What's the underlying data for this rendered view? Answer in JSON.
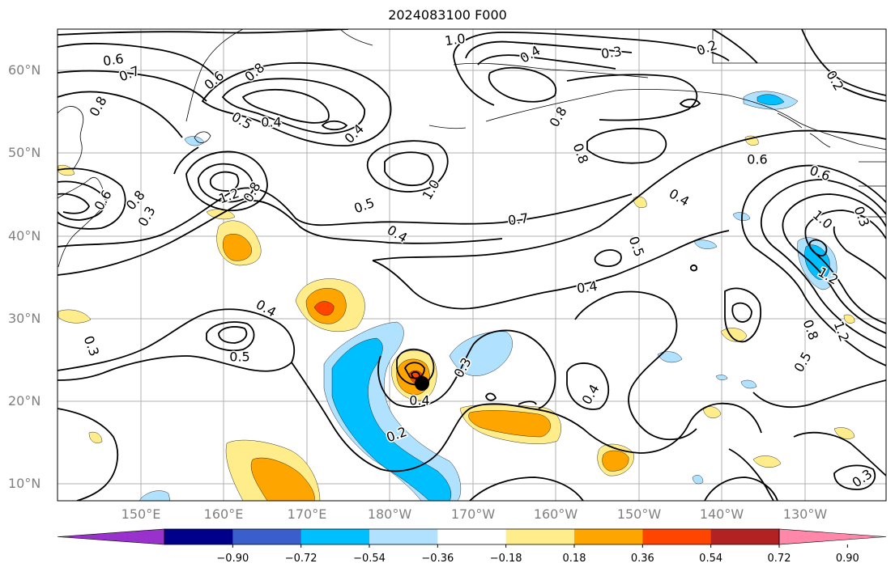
{
  "title": "2024083100 F000",
  "lat_labels": [
    "60°N",
    "50°N",
    "40°N",
    "30°N",
    "20°N",
    "10°N"
  ],
  "lon_labels": [
    "150°E",
    "160°E",
    "170°E",
    "180°W",
    "170°W",
    "160°W",
    "150°W",
    "140°W",
    "130°W"
  ],
  "contour_labels": [
    "1.0",
    "0.4",
    "0.3",
    "0.2",
    "0.6",
    "0.7",
    "0.8",
    "0.6",
    "0.8",
    "0.5",
    "0.4",
    "0.4",
    "0.8",
    "0.8",
    "1.0",
    "0.4",
    "0.6",
    "1.2",
    "0.8",
    "0.3",
    "0.6",
    "0.5",
    "0.7",
    "0.4",
    "0.5",
    "0.4",
    "1.0",
    "0.3",
    "1.2",
    "0.4",
    "0.3",
    "0.5",
    "0.4",
    "0.3",
    "0.2",
    "0.4",
    "0.8",
    "1.2",
    "0.5",
    "0.3",
    "0.2",
    "0.6",
    "0.8"
  ],
  "colorbar": {
    "tick_labels": [
      "−0.90",
      "−0.72",
      "−0.54",
      "−0.36",
      "−0.18",
      "0.18",
      "0.36",
      "0.54",
      "0.72",
      "0.90"
    ],
    "colors": [
      "#9932cc",
      "#00008b",
      "#3a5fcd",
      "#00bfff",
      "#b0e2ff",
      "#ffffff",
      "#ffec8b",
      "#ffa500",
      "#ff4500",
      "#b22222",
      "#ff88aa"
    ]
  }
}
